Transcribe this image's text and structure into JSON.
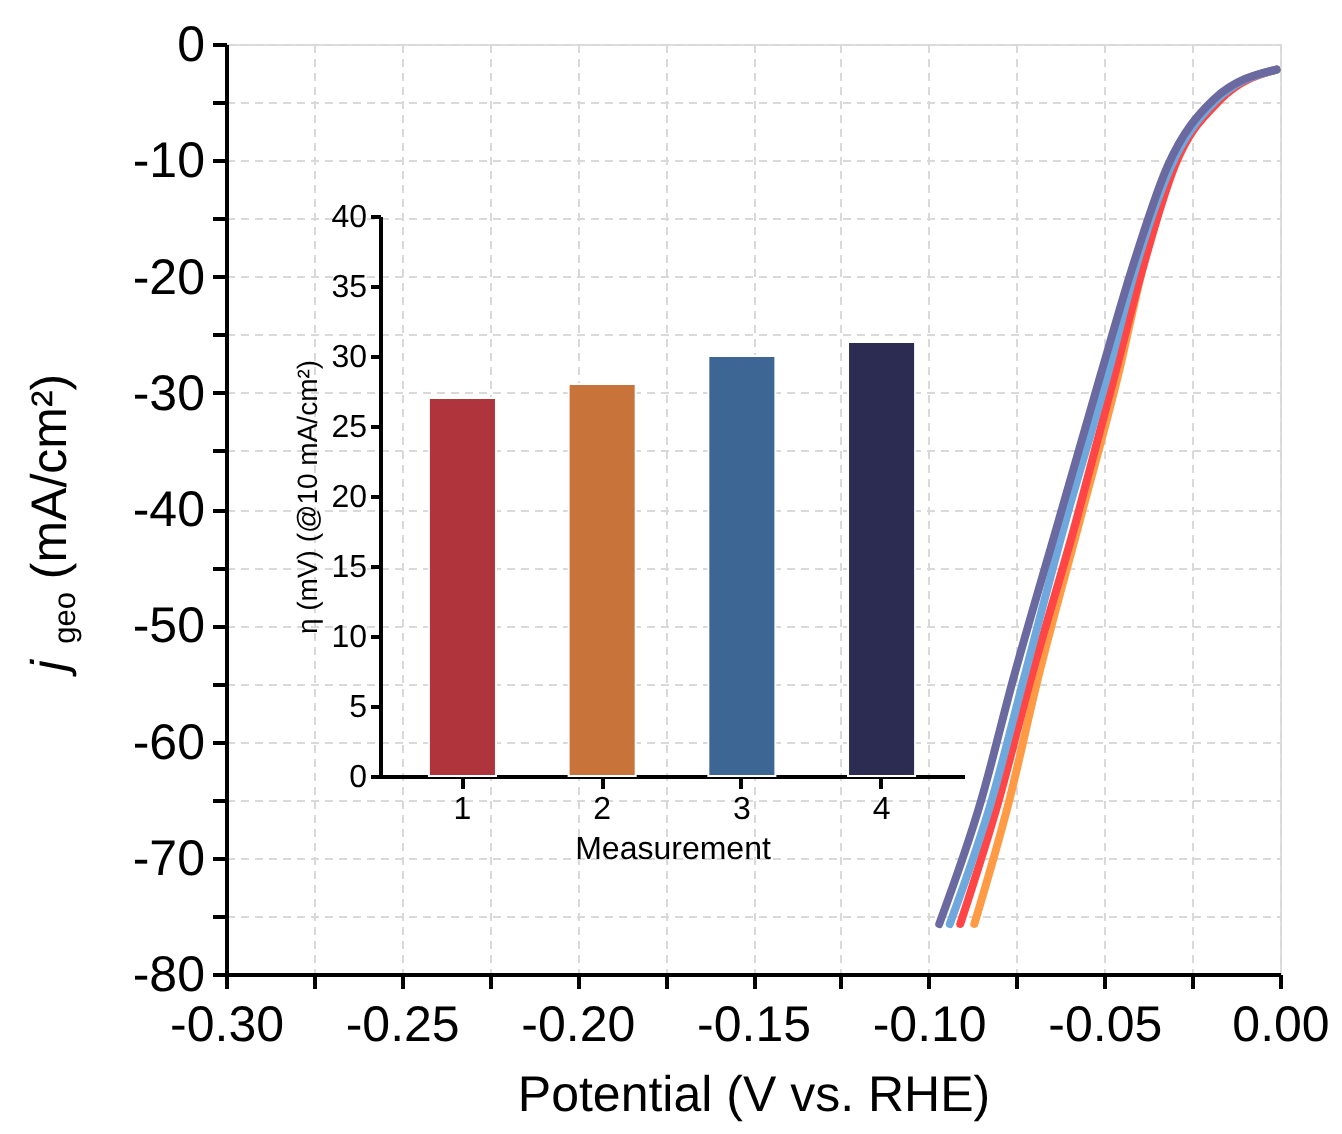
{
  "chart_data": [
    {
      "type": "line",
      "xlabel": "Potential (V vs. RHE)",
      "ylabel": "j$_{geo}$ (mA/cm²)",
      "xlim": [
        -0.3,
        0.0
      ],
      "ylim": [
        -80,
        0
      ],
      "xticks": [
        {
          "value": -0.3,
          "label": "-0.30"
        },
        {
          "value": -0.275,
          "label": null
        },
        {
          "value": -0.25,
          "label": "-0.25"
        },
        {
          "value": -0.225,
          "label": null
        },
        {
          "value": -0.2,
          "label": "-0.20"
        },
        {
          "value": -0.175,
          "label": null
        },
        {
          "value": -0.15,
          "label": "-0.15"
        },
        {
          "value": -0.125,
          "label": null
        },
        {
          "value": -0.1,
          "label": "-0.10"
        },
        {
          "value": -0.075,
          "label": null
        },
        {
          "value": -0.05,
          "label": "-0.05"
        },
        {
          "value": -0.025,
          "label": null
        },
        {
          "value": 0.0,
          "label": "0.00"
        }
      ],
      "yticks": [
        -80,
        {
          "value": -75,
          "label": null
        },
        -70,
        {
          "value": -65,
          "label": null
        },
        -60,
        {
          "value": -55,
          "label": null
        },
        -50,
        {
          "value": -45,
          "label": null
        },
        -40,
        {
          "value": -35,
          "label": null
        },
        -30,
        {
          "value": -25,
          "label": null
        },
        -20,
        {
          "value": -15,
          "label": null
        },
        -10,
        {
          "value": -5,
          "label": null
        },
        0
      ],
      "grid": true,
      "series": [
        {
          "color": "#ff9a45",
          "x": [
            -0.001,
            -0.018,
            -0.03,
            -0.039,
            -0.046,
            -0.057,
            -0.069,
            -0.077,
            -0.087
          ],
          "values": [
            -2.2,
            -4.8,
            -10.5,
            -19.2,
            -28.4,
            -41,
            -54.7,
            -65,
            -75.7
          ]
        },
        {
          "color": "#ff4545",
          "x": [
            -0.001,
            -0.017,
            -0.03,
            -0.039,
            -0.047,
            -0.058,
            -0.071,
            -0.08,
            -0.091
          ],
          "values": [
            -2.2,
            -4.8,
            -10.5,
            -19.2,
            -28.4,
            -41,
            -54.7,
            -65,
            -75.7
          ]
        },
        {
          "color": "#6fa8dc",
          "x": [
            -0.001,
            -0.018,
            -0.031,
            -0.041,
            -0.049,
            -0.061,
            -0.073,
            -0.082,
            -0.094
          ],
          "values": [
            -2.2,
            -4.8,
            -10.5,
            -19.2,
            -28.4,
            -41,
            -54.7,
            -65,
            -75.7
          ]
        },
        {
          "color": "#6a6aa0",
          "x": [
            -0.001,
            -0.019,
            -0.032,
            -0.042,
            -0.051,
            -0.063,
            -0.076,
            -0.085,
            -0.097
          ],
          "values": [
            -2.2,
            -4.8,
            -10.5,
            -19.2,
            -28.4,
            -41,
            -54.7,
            -65,
            -75.7
          ]
        }
      ]
    },
    {
      "type": "bar",
      "xlabel": "Measurement",
      "ylabel": "η (mV) (@10 mA/cm²)",
      "categories": [
        "1",
        "2",
        "3",
        "4"
      ],
      "values": [
        27,
        28,
        30,
        31
      ],
      "colors": [
        "#b0343c",
        "#c87339",
        "#3d6694",
        "#2c2c52"
      ],
      "ylim": [
        0,
        40
      ],
      "yticks": [
        0,
        5,
        10,
        15,
        20,
        25,
        30,
        35,
        40
      ]
    }
  ]
}
